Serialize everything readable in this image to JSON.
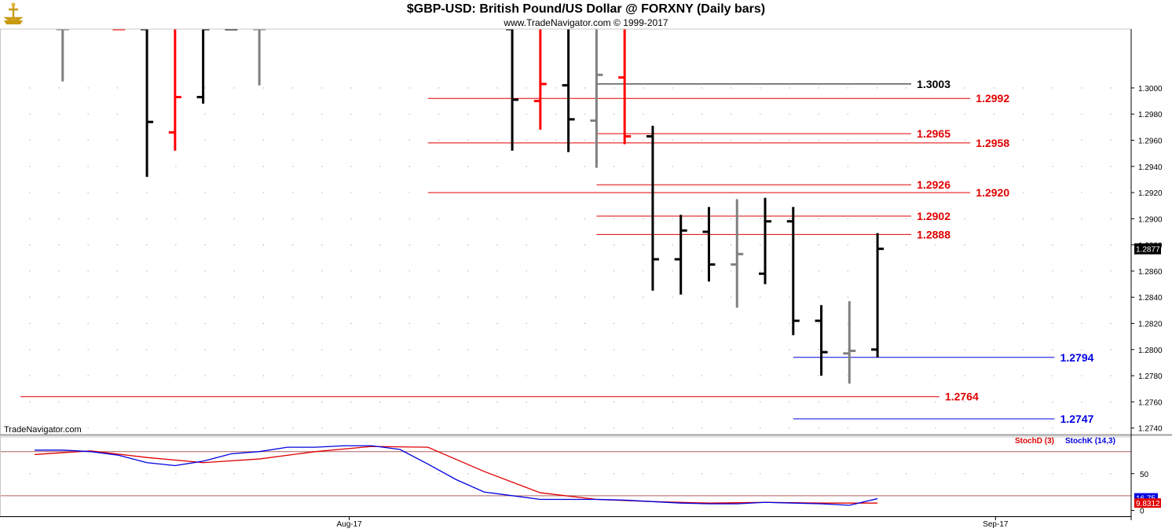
{
  "header": {
    "title": "$GBP-USD:  British Pound/US Dollar @ FORXNY  (Daily bars)",
    "subtitle": "www.TradeNavigator.com © 1999-2017",
    "watermark": "TradeNavigator.com",
    "logo_icon": "gold-ship-logo"
  },
  "chart_data": [
    {
      "type": "ohlc",
      "title": "$GBP-USD:  British Pound/US Dollar @ FORXNY  (Daily bars)",
      "x_ticks": [
        {
          "label": "Aug-17",
          "index": 11.2
        },
        {
          "label": "Sep-17",
          "index": 34.2
        }
      ],
      "ylim": [
        1.2735,
        1.3045
      ],
      "y_ticks": [
        1.274,
        1.276,
        1.278,
        1.28,
        1.282,
        1.284,
        1.286,
        1.288,
        1.29,
        1.292,
        1.294,
        1.296,
        1.298,
        1.3
      ],
      "y_tick_labels": [
        "1.2740",
        "1.2760",
        "1.2780",
        "1.2800",
        "1.2820",
        "1.2840",
        "1.2860",
        "1.2880",
        "1.2900",
        "1.2920",
        "1.2940",
        "1.2960",
        "1.2980",
        "1.3000"
      ],
      "last_price": "1.2877",
      "grid": true,
      "bar_colors": {
        "black": "#000000",
        "red": "#ff0000",
        "gray": "#808080"
      },
      "bars": [
        {
          "i": 1,
          "open": 1.3045,
          "high": 1.3045,
          "low": 1.3005,
          "close": 1.3045,
          "color": "gray"
        },
        {
          "i": 3,
          "open": 1.3045,
          "high": 1.3045,
          "low": 1.3045,
          "close": 1.3045,
          "color": "red"
        },
        {
          "i": 4,
          "open": 1.3045,
          "high": 1.3045,
          "low": 1.2932,
          "close": 1.2974,
          "color": "black"
        },
        {
          "i": 5,
          "open": 1.2966,
          "high": 1.3045,
          "low": 1.2952,
          "close": 1.2993,
          "color": "red"
        },
        {
          "i": 6,
          "open": 1.2993,
          "high": 1.3045,
          "low": 1.2988,
          "close": 1.3045,
          "color": "black"
        },
        {
          "i": 7,
          "open": 1.3045,
          "high": 1.3045,
          "low": 1.3045,
          "close": 1.3045,
          "color": "black"
        },
        {
          "i": 8,
          "open": 1.3045,
          "high": 1.3045,
          "low": 1.3002,
          "close": 1.3045,
          "color": "gray"
        },
        {
          "i": 17,
          "open": 1.3045,
          "high": 1.3045,
          "low": 1.2952,
          "close": 1.2991,
          "color": "black"
        },
        {
          "i": 18,
          "open": 1.299,
          "high": 1.3045,
          "low": 1.2968,
          "close": 1.3003,
          "color": "red"
        },
        {
          "i": 19,
          "open": 1.3002,
          "high": 1.3045,
          "low": 1.2951,
          "close": 1.2976,
          "color": "black"
        },
        {
          "i": 20,
          "open": 1.2975,
          "high": 1.3045,
          "low": 1.2939,
          "close": 1.301,
          "color": "gray"
        },
        {
          "i": 21,
          "open": 1.3008,
          "high": 1.3045,
          "low": 1.2957,
          "close": 1.2963,
          "color": "red"
        },
        {
          "i": 22,
          "open": 1.2963,
          "high": 1.2971,
          "low": 1.2845,
          "close": 1.2869,
          "color": "black"
        },
        {
          "i": 23,
          "open": 1.2869,
          "high": 1.2903,
          "low": 1.2842,
          "close": 1.2891,
          "color": "black"
        },
        {
          "i": 24,
          "open": 1.289,
          "high": 1.2909,
          "low": 1.2852,
          "close": 1.2865,
          "color": "black"
        },
        {
          "i": 25,
          "open": 1.2865,
          "high": 1.2915,
          "low": 1.2832,
          "close": 1.2873,
          "color": "gray"
        },
        {
          "i": 26,
          "open": 1.2858,
          "high": 1.2916,
          "low": 1.285,
          "close": 1.2898,
          "color": "black"
        },
        {
          "i": 27,
          "open": 1.2898,
          "high": 1.2909,
          "low": 1.2811,
          "close": 1.2822,
          "color": "black"
        },
        {
          "i": 28,
          "open": 1.2822,
          "high": 1.2834,
          "low": 1.278,
          "close": 1.2798,
          "color": "black"
        },
        {
          "i": 29,
          "open": 1.2797,
          "high": 1.2837,
          "low": 1.2774,
          "close": 1.2799,
          "color": "gray"
        },
        {
          "i": 30,
          "open": 1.28,
          "high": 1.2889,
          "low": 1.2794,
          "close": 1.2877,
          "color": "black"
        }
      ],
      "levels": [
        {
          "value": 1.3003,
          "label": "1.3003",
          "color": "#000000",
          "from": 20,
          "to": 31.2,
          "label_at": 31.4
        },
        {
          "value": 1.2992,
          "label": "1.2992",
          "color": "#e00000",
          "from": 14,
          "to": 33.3,
          "label_at": 33.5
        },
        {
          "value": 1.2965,
          "label": "1.2965",
          "color": "#e00000",
          "from": 20,
          "to": 31.2,
          "label_at": 31.4
        },
        {
          "value": 1.2958,
          "label": "1.2958",
          "color": "#e00000",
          "from": 14,
          "to": 33.3,
          "label_at": 33.5
        },
        {
          "value": 1.2926,
          "label": "1.2926",
          "color": "#e00000",
          "from": 20,
          "to": 31.2,
          "label_at": 31.4
        },
        {
          "value": 1.292,
          "label": "1.2920",
          "color": "#e00000",
          "from": 14,
          "to": 33.3,
          "label_at": 33.5
        },
        {
          "value": 1.2902,
          "label": "1.2902",
          "color": "#e00000",
          "from": 20,
          "to": 31.2,
          "label_at": 31.4
        },
        {
          "value": 1.2888,
          "label": "1.2888",
          "color": "#e00000",
          "from": 20,
          "to": 31.2,
          "label_at": 31.4
        },
        {
          "value": 1.2794,
          "label": "1.2794",
          "color": "#0000e0",
          "from": 27,
          "to": 36.3,
          "label_at": 36.5
        },
        {
          "value": 1.2764,
          "label": "1.2764",
          "color": "#e00000",
          "from": -0.5,
          "to": 32.2,
          "label_at": 32.4
        },
        {
          "value": 1.2747,
          "label": "1.2747",
          "color": "#0000e0",
          "from": 27,
          "to": 36.3,
          "label_at": 36.5
        }
      ]
    },
    {
      "type": "line",
      "title": "",
      "legend": [
        "StochD (3)",
        "StochK (14,3)"
      ],
      "legend_placement": "top-right",
      "ylim": [
        -8,
        100
      ],
      "y_ticks": [
        0,
        50
      ],
      "y_tick_labels": [
        "0",
        "50"
      ],
      "ref_lines": [
        80,
        20
      ],
      "series": [
        {
          "name": "StochD (3)",
          "color": "#e00000",
          "last_label": "9.8312",
          "x": [
            0,
            2,
            4,
            6,
            8,
            10,
            12,
            14,
            16,
            18,
            20,
            22,
            24,
            26,
            28,
            30
          ],
          "values": [
            76,
            81,
            72,
            65,
            70,
            80,
            87,
            86,
            53,
            24,
            15,
            12,
            10,
            11,
            10,
            10
          ]
        },
        {
          "name": "StochK (14,3)",
          "color": "#0000e0",
          "last_label": "16.75",
          "x": [
            0,
            1,
            2,
            3,
            4,
            5,
            6,
            7,
            8,
            9,
            10,
            11,
            12,
            13,
            14,
            15,
            16,
            17,
            18,
            19,
            20,
            21,
            22,
            23,
            24,
            25,
            26,
            27,
            28,
            29,
            30
          ],
          "values": [
            82,
            82,
            80,
            75,
            65,
            61,
            67,
            77,
            80,
            86,
            86,
            88,
            88,
            83,
            63,
            42,
            25,
            20,
            15,
            15,
            15,
            14,
            12,
            10,
            9,
            9,
            11,
            10,
            9,
            7,
            16
          ]
        }
      ]
    }
  ]
}
